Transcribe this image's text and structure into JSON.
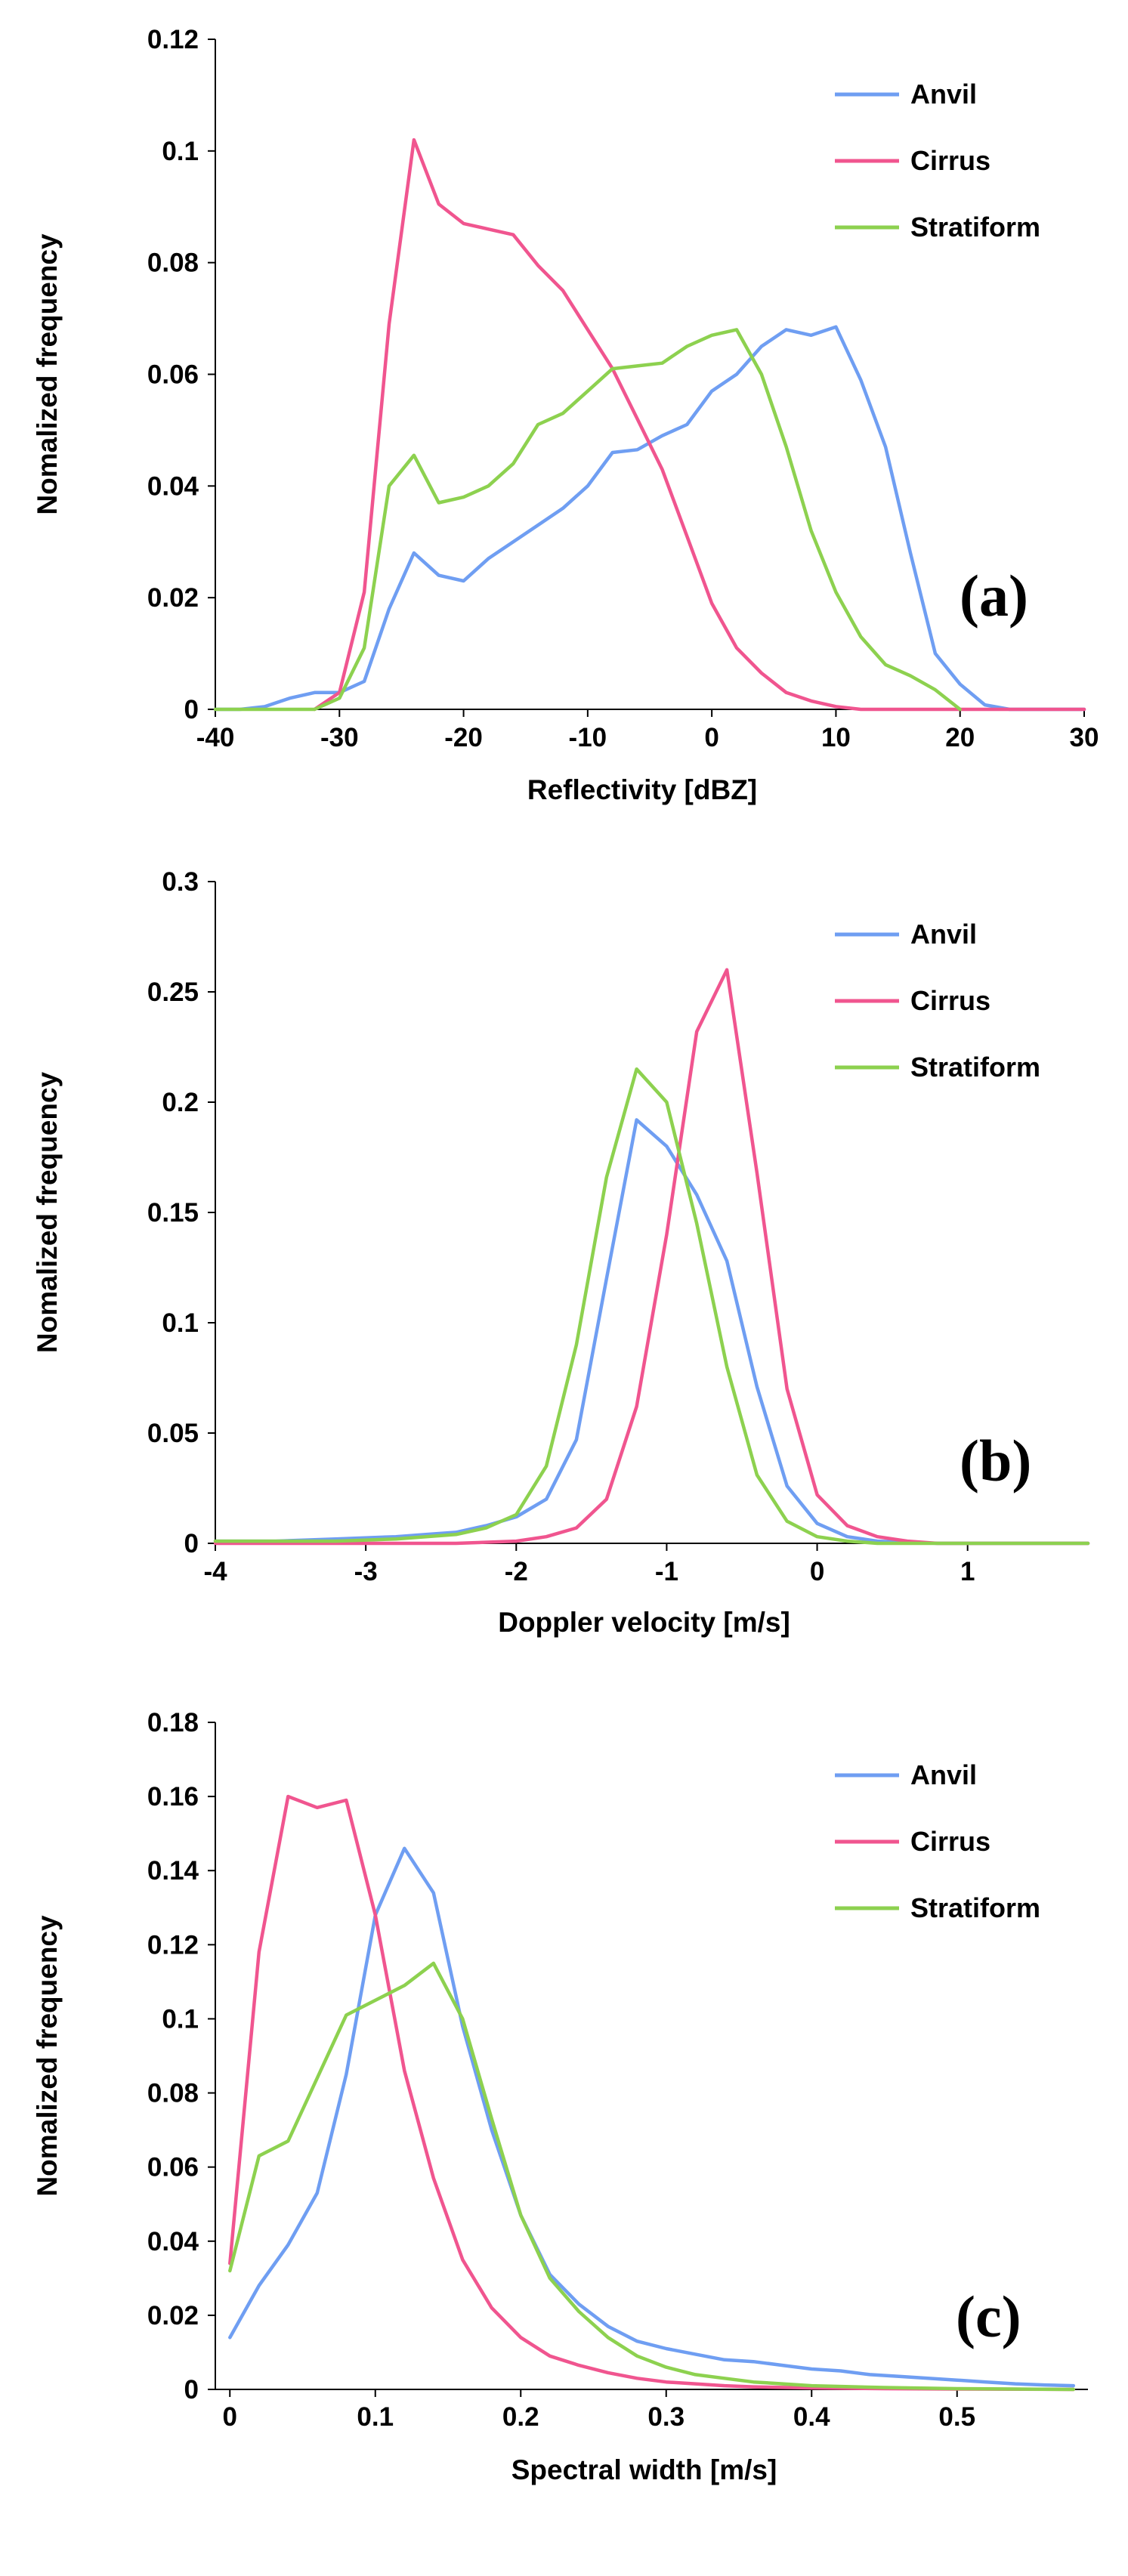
{
  "colors": {
    "Anvil": "#6f9ef2",
    "Cirrus": "#f0558f",
    "Stratiform": "#8dd14f"
  },
  "chart_data": [
    {
      "type": "line",
      "panel_label": "(a)",
      "xlabel": "Reflectivity [dBZ]",
      "ylabel": "Nomalized frequency",
      "xlim": [
        -40,
        30
      ],
      "ylim": [
        0,
        0.12
      ],
      "xticks": [
        -40,
        -30,
        -20,
        -10,
        0,
        10,
        20,
        30
      ],
      "xtick_labels": [
        "-40",
        "-30",
        "-20",
        "-10",
        "0",
        "10",
        "20",
        "30"
      ],
      "yticks": [
        0,
        0.02,
        0.04,
        0.06,
        0.08,
        0.1,
        0.12
      ],
      "ytick_labels": [
        "0",
        "0.02",
        "0.04",
        "0.06",
        "0.08",
        "0.1",
        "0.12"
      ],
      "legend": [
        "Anvil",
        "Cirrus",
        "Stratiform"
      ],
      "series": [
        {
          "name": "Anvil",
          "x": [
            -40,
            -38,
            -36,
            -34,
            -32,
            -30,
            -28,
            -26,
            -24,
            -22,
            -20,
            -18,
            -16,
            -14,
            -12,
            -10,
            -8,
            -6,
            -4,
            -2,
            0,
            2,
            4,
            6,
            8,
            10,
            12,
            14,
            16,
            18,
            20,
            22,
            24,
            26,
            28,
            30
          ],
          "values": [
            0,
            0,
            0.0005,
            0.002,
            0.003,
            0.003,
            0.005,
            0.018,
            0.028,
            0.024,
            0.023,
            0.027,
            0.03,
            0.033,
            0.036,
            0.04,
            0.046,
            0.0465,
            0.049,
            0.051,
            0.057,
            0.06,
            0.065,
            0.068,
            0.067,
            0.0685,
            0.059,
            0.047,
            0.028,
            0.01,
            0.0045,
            0.0008,
            0,
            0,
            0,
            0
          ]
        },
        {
          "name": "Cirrus",
          "x": [
            -32,
            -30,
            -28,
            -26,
            -24,
            -22,
            -20,
            -18,
            -16,
            -14,
            -12,
            -10,
            -8,
            -6,
            -4,
            -2,
            0,
            2,
            4,
            6,
            8,
            10,
            12,
            14,
            16,
            18,
            20,
            22,
            24,
            26,
            28,
            30
          ],
          "values": [
            0,
            0.003,
            0.021,
            0.069,
            0.102,
            0.0905,
            0.087,
            0.086,
            0.085,
            0.0795,
            0.075,
            0.068,
            0.061,
            0.052,
            0.043,
            0.031,
            0.019,
            0.011,
            0.0065,
            0.003,
            0.0015,
            0.0005,
            0,
            0,
            0,
            0,
            0,
            0,
            0,
            0,
            0,
            0
          ]
        },
        {
          "name": "Stratiform",
          "x": [
            -40,
            -38,
            -36,
            -34,
            -32,
            -30,
            -28,
            -26,
            -24,
            -22,
            -20,
            -18,
            -16,
            -14,
            -12,
            -10,
            -8,
            -6,
            -4,
            -2,
            0,
            2,
            4,
            6,
            8,
            10,
            12,
            14,
            16,
            18,
            20
          ],
          "values": [
            0,
            0,
            0,
            0,
            0,
            0.002,
            0.011,
            0.04,
            0.0455,
            0.037,
            0.038,
            0.04,
            0.044,
            0.051,
            0.053,
            0.057,
            0.061,
            0.0615,
            0.062,
            0.065,
            0.067,
            0.068,
            0.06,
            0.047,
            0.032,
            0.021,
            0.013,
            0.008,
            0.006,
            0.0035,
            0
          ]
        }
      ]
    },
    {
      "type": "line",
      "panel_label": "(b)",
      "xlabel": "Doppler velocity [m/s]",
      "ylabel": "Nomalized frequency",
      "xlim": [
        -4,
        1.8
      ],
      "ylim": [
        0,
        0.3
      ],
      "xticks": [
        -4,
        -3,
        -2,
        -1,
        0,
        1
      ],
      "xtick_labels": [
        "-4",
        "-3",
        "-2",
        "-1",
        "0",
        "1"
      ],
      "yticks": [
        0,
        0.05,
        0.1,
        0.15,
        0.2,
        0.25,
        0.3
      ],
      "ytick_labels": [
        "0",
        "0.05",
        "0.1",
        "0.15",
        "0.2",
        "0.25",
        "0.3"
      ],
      "legend": [
        "Anvil",
        "Cirrus",
        "Stratiform"
      ],
      "series": [
        {
          "name": "Anvil",
          "x": [
            -4,
            -3.6,
            -3.2,
            -2.8,
            -2.6,
            -2.4,
            -2.2,
            -2.0,
            -1.8,
            -1.6,
            -1.4,
            -1.2,
            -1.0,
            -0.8,
            -0.6,
            -0.4,
            -0.2,
            0.0,
            0.2,
            0.4,
            0.6,
            0.8,
            1.0,
            1.4,
            1.8
          ],
          "values": [
            0.001,
            0.001,
            0.002,
            0.003,
            0.004,
            0.005,
            0.008,
            0.012,
            0.02,
            0.047,
            0.12,
            0.192,
            0.18,
            0.158,
            0.128,
            0.071,
            0.026,
            0.009,
            0.003,
            0.001,
            0.0005,
            0,
            0,
            0,
            0
          ]
        },
        {
          "name": "Cirrus",
          "x": [
            -4,
            -3,
            -2.4,
            -2.0,
            -1.8,
            -1.6,
            -1.4,
            -1.2,
            -1.0,
            -0.8,
            -0.6,
            -0.4,
            -0.2,
            0.0,
            0.2,
            0.4,
            0.6,
            0.8,
            1.0,
            1.4,
            1.8
          ],
          "values": [
            0,
            0,
            0,
            0.001,
            0.003,
            0.007,
            0.02,
            0.062,
            0.14,
            0.232,
            0.26,
            0.168,
            0.07,
            0.022,
            0.008,
            0.003,
            0.001,
            0,
            0,
            0,
            0
          ]
        },
        {
          "name": "Stratiform",
          "x": [
            -4,
            -3.6,
            -3.2,
            -2.8,
            -2.6,
            -2.4,
            -2.2,
            -2.0,
            -1.8,
            -1.6,
            -1.4,
            -1.2,
            -1.0,
            -0.8,
            -0.6,
            -0.4,
            -0.2,
            0.0,
            0.2,
            0.4,
            1.0,
            1.8
          ],
          "values": [
            0.001,
            0.001,
            0.001,
            0.002,
            0.003,
            0.004,
            0.007,
            0.013,
            0.035,
            0.09,
            0.166,
            0.215,
            0.2,
            0.145,
            0.08,
            0.031,
            0.01,
            0.003,
            0.001,
            0,
            0,
            0
          ]
        }
      ]
    },
    {
      "type": "line",
      "panel_label": "(c)",
      "xlabel": "Spectral width [m/s]",
      "ylabel": "Nomalized frequency",
      "xlim": [
        -0.01,
        0.59
      ],
      "ylim": [
        0,
        0.18
      ],
      "xticks": [
        0,
        0.1,
        0.2,
        0.3,
        0.4,
        0.5
      ],
      "xtick_labels": [
        "0",
        "0.1",
        "0.2",
        "0.3",
        "0.4",
        "0.5"
      ],
      "yticks": [
        0,
        0.02,
        0.04,
        0.06,
        0.08,
        0.1,
        0.12,
        0.14,
        0.16,
        0.18
      ],
      "ytick_labels": [
        "0",
        "0.02",
        "0.04",
        "0.06",
        "0.08",
        "0.1",
        "0.12",
        "0.14",
        "0.16",
        "0.18"
      ],
      "legend": [
        "Anvil",
        "Cirrus",
        "Stratiform"
      ],
      "series": [
        {
          "name": "Anvil",
          "x": [
            0,
            0.02,
            0.04,
            0.06,
            0.08,
            0.1,
            0.12,
            0.14,
            0.16,
            0.18,
            0.2,
            0.22,
            0.24,
            0.26,
            0.28,
            0.3,
            0.32,
            0.34,
            0.36,
            0.38,
            0.4,
            0.42,
            0.44,
            0.46,
            0.48,
            0.5,
            0.52,
            0.54,
            0.56,
            0.58
          ],
          "values": [
            0.014,
            0.028,
            0.039,
            0.053,
            0.085,
            0.128,
            0.146,
            0.134,
            0.098,
            0.07,
            0.047,
            0.031,
            0.023,
            0.017,
            0.013,
            0.011,
            0.0095,
            0.008,
            0.0075,
            0.0065,
            0.0055,
            0.005,
            0.004,
            0.0035,
            0.003,
            0.0025,
            0.002,
            0.0015,
            0.0012,
            0.001
          ]
        },
        {
          "name": "Cirrus",
          "x": [
            0,
            0.02,
            0.04,
            0.06,
            0.08,
            0.1,
            0.12,
            0.14,
            0.16,
            0.18,
            0.2,
            0.22,
            0.24,
            0.26,
            0.28,
            0.3,
            0.32,
            0.34,
            0.36,
            0.4,
            0.45,
            0.5,
            0.58
          ],
          "values": [
            0.034,
            0.118,
            0.16,
            0.157,
            0.159,
            0.128,
            0.086,
            0.057,
            0.035,
            0.022,
            0.014,
            0.009,
            0.0065,
            0.0045,
            0.003,
            0.002,
            0.0015,
            0.001,
            0.0007,
            0.0004,
            0.0002,
            0.0001,
            0
          ]
        },
        {
          "name": "Stratiform",
          "x": [
            0,
            0.02,
            0.04,
            0.06,
            0.08,
            0.1,
            0.12,
            0.14,
            0.16,
            0.18,
            0.2,
            0.22,
            0.24,
            0.26,
            0.28,
            0.3,
            0.32,
            0.34,
            0.36,
            0.38,
            0.4,
            0.45,
            0.5,
            0.58
          ],
          "values": [
            0.032,
            0.063,
            0.067,
            0.084,
            0.101,
            0.105,
            0.109,
            0.115,
            0.1,
            0.073,
            0.047,
            0.03,
            0.021,
            0.014,
            0.009,
            0.006,
            0.004,
            0.003,
            0.002,
            0.0015,
            0.001,
            0.0005,
            0.0002,
            0
          ]
        }
      ]
    }
  ]
}
